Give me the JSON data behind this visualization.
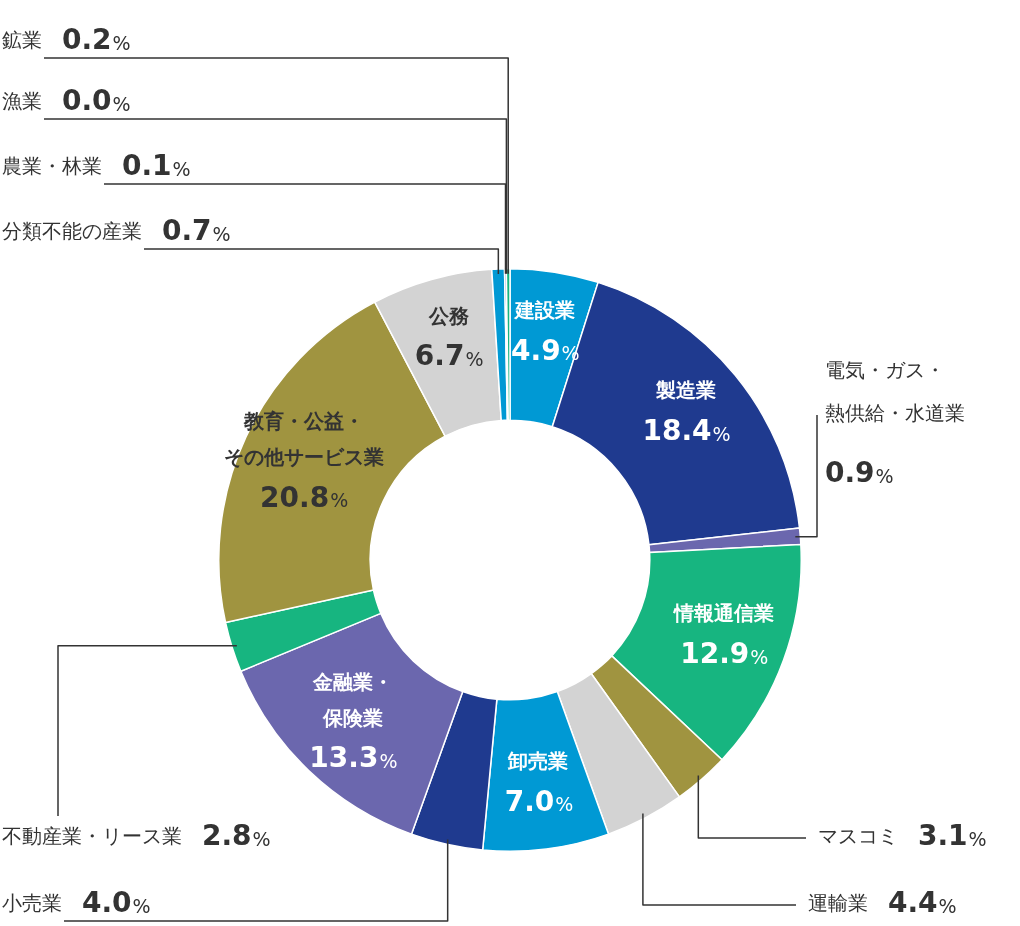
{
  "chart_data": {
    "type": "donut",
    "categories": [
      "建設業",
      "製造業",
      "電気・ガス・熱供給・水道業",
      "情報通信業",
      "マスコミ",
      "運輸業",
      "卸売業",
      "小売業",
      "金融業・保険業",
      "不動産業・リース業",
      "教育・公益・その他サービス業",
      "公務",
      "分類不能の産業",
      "農業・林業",
      "漁業",
      "鉱業"
    ],
    "values": [
      4.9,
      18.4,
      0.9,
      12.9,
      3.1,
      4.4,
      7.0,
      4.0,
      13.3,
      2.8,
      20.8,
      6.7,
      0.7,
      0.1,
      0.0,
      0.2
    ],
    "value_labels": [
      "4.9%",
      "18.4%",
      "0.9%",
      "12.9%",
      "3.1%",
      "4.4%",
      "7.0%",
      "4.0%",
      "13.3%",
      "2.8%",
      "20.8%",
      "6.7%",
      "0.7%",
      "0.1%",
      "0.0%",
      "0.2%"
    ],
    "colors": [
      "#0099d4",
      "#1f3a8f",
      "#6b67ae",
      "#17b580",
      "#a09440",
      "#d3d3d3",
      "#0099d4",
      "#1f3a8f",
      "#6b67ae",
      "#17b580",
      "#a09440",
      "#d3d3d3",
      "#0099d4",
      "#1f3a8f",
      "#6b67ae",
      "#17b580"
    ],
    "legend": false
  }
}
